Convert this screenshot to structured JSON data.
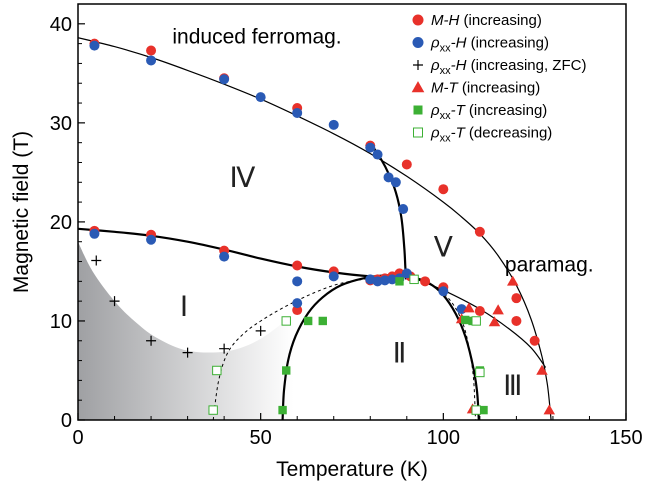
{
  "chart_data": {
    "type": "scatter",
    "title": "",
    "xlabel": "Temperature (K)",
    "ylabel": "Magnetic field (T)",
    "xlim": [
      0,
      150
    ],
    "ylim": [
      0,
      42
    ],
    "xticks": [
      0,
      50,
      100,
      150
    ],
    "yticks": [
      0,
      10,
      20,
      30,
      40
    ],
    "grid": false,
    "legend_position": "top-right",
    "colors": {
      "red": "#e8312a",
      "blue": "#2a5ab5",
      "green": "#3cb034",
      "gray": "#b9babd",
      "black": "#000000"
    },
    "legend": [
      {
        "key": "mh",
        "marker": "circle",
        "color": "#e8312a",
        "filled": true,
        "parts": [
          {
            "t": "M-H",
            "it": true
          },
          {
            "t": " (increasing)"
          }
        ]
      },
      {
        "key": "rhoh",
        "marker": "circle",
        "color": "#2a5ab5",
        "filled": true,
        "parts": [
          {
            "t": "ρ",
            "it": true
          },
          {
            "t": "xx",
            "sub": true
          },
          {
            "t": "-H",
            "it": true
          },
          {
            "t": " (increasing)"
          }
        ]
      },
      {
        "key": "rhohzfc",
        "marker": "plus",
        "color": "#000000",
        "filled": true,
        "parts": [
          {
            "t": "ρ",
            "it": true
          },
          {
            "t": "xx",
            "sub": true
          },
          {
            "t": "-H",
            "it": true
          },
          {
            "t": " (increasing, ZFC)"
          }
        ]
      },
      {
        "key": "mt",
        "marker": "triangle",
        "color": "#e8312a",
        "filled": true,
        "parts": [
          {
            "t": "M-T",
            "it": true
          },
          {
            "t": " (increasing)"
          }
        ]
      },
      {
        "key": "rhotinc",
        "marker": "square",
        "color": "#3cb034",
        "filled": true,
        "parts": [
          {
            "t": "ρ",
            "it": true
          },
          {
            "t": "xx",
            "sub": true
          },
          {
            "t": "-T",
            "it": true
          },
          {
            "t": " (increasing)"
          }
        ]
      },
      {
        "key": "rhotdec",
        "marker": "square",
        "color": "#3cb034",
        "filled": false,
        "parts": [
          {
            "t": "ρ",
            "it": true
          },
          {
            "t": "xx",
            "sub": true
          },
          {
            "t": "-T",
            "it": true
          },
          {
            "t": " (decreasing)"
          }
        ]
      }
    ],
    "annotations": [
      {
        "text": "induced ferromag.",
        "x": 49,
        "y": 38.0,
        "cls": "annot",
        "anchor": "middle"
      },
      {
        "text": "paramag.",
        "x": 129,
        "y": 15.0,
        "cls": "annot",
        "anchor": "middle"
      },
      {
        "text": "Ⅰ",
        "x": 29,
        "y": 10.5,
        "cls": "roman",
        "anchor": "middle"
      },
      {
        "text": "Ⅱ",
        "x": 88,
        "y": 5.8,
        "cls": "roman",
        "anchor": "middle"
      },
      {
        "text": "Ⅲ",
        "x": 119,
        "y": 2.5,
        "cls": "roman",
        "anchor": "middle"
      },
      {
        "text": "Ⅳ",
        "x": 45,
        "y": 23.5,
        "cls": "roman",
        "anchor": "middle"
      },
      {
        "text": "Ⅴ",
        "x": 100,
        "y": 16.5,
        "cls": "roman",
        "anchor": "middle"
      }
    ],
    "series": [
      {
        "name": "M-H (increasing)",
        "marker": "circle",
        "color": "#e8312a",
        "filled": true,
        "points": [
          [
            4.5,
            38.0
          ],
          [
            20,
            37.3
          ],
          [
            40,
            34.5
          ],
          [
            60,
            31.5
          ],
          [
            80,
            27.7
          ],
          [
            90,
            25.8
          ],
          [
            100,
            23.3
          ],
          [
            110,
            19.0
          ],
          [
            120,
            12.3
          ],
          [
            125,
            8.0
          ],
          [
            4.5,
            19.1
          ],
          [
            20,
            18.7
          ],
          [
            40,
            17.1
          ],
          [
            60,
            15.6
          ],
          [
            70,
            15.0
          ],
          [
            80,
            14.1
          ],
          [
            82,
            14.2
          ],
          [
            84,
            14.3
          ],
          [
            86,
            14.5
          ],
          [
            88,
            14.8
          ],
          [
            91,
            14.5
          ],
          [
            95,
            14.0
          ],
          [
            100,
            13.4
          ],
          [
            60,
            11.1
          ],
          [
            110,
            11.0
          ],
          [
            120,
            10.0
          ]
        ]
      },
      {
        "name": "ρxx-H (increasing)",
        "marker": "circle",
        "color": "#2a5ab5",
        "filled": true,
        "points": [
          [
            4.5,
            37.8
          ],
          [
            20,
            36.3
          ],
          [
            40,
            34.4
          ],
          [
            50,
            32.6
          ],
          [
            60,
            31.0
          ],
          [
            70,
            29.8
          ],
          [
            80,
            27.5
          ],
          [
            82,
            26.8
          ],
          [
            85,
            24.5
          ],
          [
            87,
            24.0
          ],
          [
            89,
            21.3
          ],
          [
            4.5,
            18.8
          ],
          [
            20,
            18.2
          ],
          [
            40,
            16.5
          ],
          [
            60,
            14.0
          ],
          [
            70,
            14.5
          ],
          [
            80,
            14.2
          ],
          [
            82,
            14.0
          ],
          [
            84,
            14.1
          ],
          [
            86,
            14.2
          ],
          [
            88,
            14.3
          ],
          [
            90,
            14.8
          ],
          [
            100,
            13.0
          ],
          [
            105,
            11.2
          ],
          [
            60,
            11.8
          ]
        ]
      },
      {
        "name": "ρxx-H (increasing, ZFC)",
        "marker": "plus",
        "color": "#000000",
        "filled": true,
        "points": [
          [
            5,
            16.1
          ],
          [
            10,
            12.0
          ],
          [
            20,
            8.0
          ],
          [
            30,
            6.8
          ],
          [
            40,
            7.2
          ],
          [
            50,
            9.0
          ]
        ]
      },
      {
        "name": "M-T (increasing)",
        "marker": "triangle",
        "color": "#e8312a",
        "filled": true,
        "points": [
          [
            119,
            14.0
          ],
          [
            115,
            11.1
          ],
          [
            105,
            10.2
          ],
          [
            107,
            11.3
          ],
          [
            114,
            9.9
          ],
          [
            127,
            5.0
          ],
          [
            129,
            1.0
          ],
          [
            108,
            1.1
          ]
        ]
      },
      {
        "name": "ρxx-T (increasing)",
        "marker": "square",
        "color": "#3cb034",
        "filled": true,
        "points": [
          [
            56,
            1.0
          ],
          [
            57,
            5.0
          ],
          [
            63,
            10.0
          ],
          [
            67,
            10.0
          ],
          [
            88,
            14.0
          ],
          [
            92,
            14.2
          ],
          [
            106,
            10.1
          ],
          [
            108,
            10.0
          ],
          [
            110,
            5.0
          ],
          [
            111,
            1.0
          ]
        ]
      },
      {
        "name": "ρxx-T (decreasing)",
        "marker": "square",
        "color": "#3cb034",
        "filled": false,
        "points": [
          [
            37,
            1.0
          ],
          [
            38,
            5.0
          ],
          [
            57,
            10.0
          ],
          [
            92,
            14.2
          ],
          [
            109,
            10.0
          ],
          [
            110,
            4.8
          ],
          [
            109,
            1.0
          ]
        ]
      }
    ],
    "curves": [
      {
        "id": "upper-boundary",
        "stroke": "#000000",
        "width": 1.2,
        "dash": false,
        "points": [
          [
            0,
            38.6
          ],
          [
            10,
            37.7
          ],
          [
            20,
            36.6
          ],
          [
            30,
            35.3
          ],
          [
            40,
            33.9
          ],
          [
            50,
            32.4
          ],
          [
            60,
            30.7
          ],
          [
            70,
            28.9
          ],
          [
            80,
            26.9
          ],
          [
            90,
            24.6
          ],
          [
            100,
            22.0
          ],
          [
            105,
            20.5
          ],
          [
            110,
            18.8
          ],
          [
            115,
            16.6
          ],
          [
            120,
            13.6
          ],
          [
            124,
            10.2
          ],
          [
            127,
            6.4
          ],
          [
            128.5,
            3.5
          ],
          [
            129.5,
            0
          ]
        ]
      },
      {
        "id": "iv-lower-boundary",
        "stroke": "#000000",
        "width": 2.2,
        "dash": false,
        "points": [
          [
            0,
            19.3
          ],
          [
            10,
            19.0
          ],
          [
            20,
            18.6
          ],
          [
            30,
            18.0
          ],
          [
            40,
            17.2
          ],
          [
            50,
            16.3
          ],
          [
            60,
            15.5
          ],
          [
            70,
            14.9
          ],
          [
            80,
            14.5
          ],
          [
            88,
            14.4
          ]
        ]
      },
      {
        "id": "iv-v-boundary",
        "stroke": "#000000",
        "width": 2.2,
        "dash": false,
        "points": [
          [
            80,
            28.0
          ],
          [
            83,
            26.3
          ],
          [
            85,
            24.9
          ],
          [
            87,
            23.0
          ],
          [
            88.5,
            20.5
          ],
          [
            89.3,
            17.5
          ],
          [
            89.6,
            15.5
          ],
          [
            89.8,
            14.2
          ]
        ]
      },
      {
        "id": "phase-ii-dome",
        "stroke": "#000000",
        "width": 2.2,
        "dash": false,
        "points": [
          [
            56,
            0
          ],
          [
            56.4,
            3
          ],
          [
            57.5,
            6
          ],
          [
            59.6,
            8.5
          ],
          [
            63,
            10.8
          ],
          [
            67,
            12.4
          ],
          [
            72,
            13.6
          ],
          [
            78,
            14.3
          ],
          [
            84,
            14.6
          ],
          [
            90,
            14.5
          ],
          [
            95,
            14.0
          ],
          [
            99,
            13.0
          ],
          [
            102.5,
            11.3
          ],
          [
            105.5,
            9.0
          ],
          [
            107.8,
            6.0
          ],
          [
            109.2,
            3.0
          ],
          [
            109.7,
            0
          ]
        ]
      },
      {
        "id": "iii-v-boundary",
        "stroke": "#000000",
        "width": 1.2,
        "dash": false,
        "points": [
          [
            90,
            14.6
          ],
          [
            100,
            13.1
          ],
          [
            110,
            11.2
          ],
          [
            118,
            9.2
          ],
          [
            124,
            7.3
          ],
          [
            128,
            5.3
          ]
        ]
      },
      {
        "id": "dashed-left",
        "stroke": "#000000",
        "width": 1.0,
        "dash": true,
        "points": [
          [
            37,
            0
          ],
          [
            38.5,
            4.0
          ],
          [
            41,
            6.8
          ],
          [
            45,
            8.6
          ],
          [
            50,
            10.0
          ],
          [
            57,
            11.5
          ],
          [
            65,
            12.9
          ],
          [
            72,
            13.8
          ],
          [
            80,
            14.3
          ],
          [
            86,
            14.5
          ]
        ]
      },
      {
        "id": "dashed-right",
        "stroke": "#000000",
        "width": 1.0,
        "dash": true,
        "points": [
          [
            90,
            14.5
          ],
          [
            96,
            13.8
          ],
          [
            100,
            12.8
          ],
          [
            103,
            11.5
          ],
          [
            105.5,
            9.6
          ],
          [
            107.2,
            7.0
          ],
          [
            108.3,
            4.0
          ],
          [
            108.8,
            0
          ]
        ]
      }
    ],
    "shaded_region": {
      "fill_from": "#9fa0a3",
      "fill_to": "#ffffff",
      "points": [
        [
          0,
          18.0
        ],
        [
          4,
          15.0
        ],
        [
          10,
          12.0
        ],
        [
          16,
          9.8
        ],
        [
          22,
          8.2
        ],
        [
          30,
          7.0
        ],
        [
          40,
          6.9
        ],
        [
          48,
          7.8
        ],
        [
          55,
          9.5
        ],
        [
          59,
          11.0
        ],
        [
          59,
          0
        ],
        [
          0,
          0
        ]
      ]
    }
  }
}
